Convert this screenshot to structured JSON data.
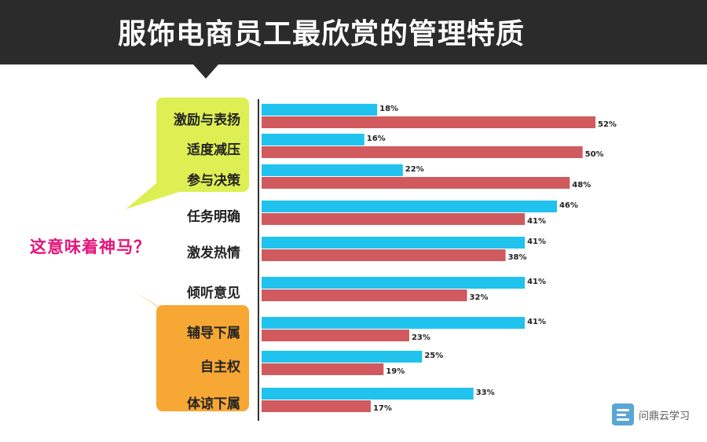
{
  "header": {
    "title": "服饰电商员工最欣赏的管理特质"
  },
  "side_question": "这意味着神马？",
  "logo": {
    "text": "问鼎云学习",
    "icon": "logo-icon"
  },
  "colors": {
    "series_a": "#1fc3ee",
    "series_b": "#d05a5e",
    "callout_green": "#ddef52",
    "callout_orange": "#f7a734",
    "header": "#2b2b2b",
    "question": "#e4147a"
  },
  "chart_data": {
    "type": "bar",
    "orientation": "horizontal",
    "categories": [
      "激励与表扬",
      "适度减压",
      "参与决策",
      "任务明确",
      "激发热情",
      "倾听意见",
      "辅导下属",
      "自主权",
      "体谅下属"
    ],
    "series": [
      {
        "values": [
          18,
          16,
          22,
          46,
          41,
          41,
          41,
          25,
          33
        ],
        "labels": [
          "18%",
          "16%",
          "22%",
          "46%",
          "41%",
          "41%",
          "41%",
          "25%",
          "33%"
        ]
      },
      {
        "values": [
          52,
          50,
          48,
          41,
          38,
          32,
          23,
          19,
          17
        ],
        "labels": [
          "52%",
          "50%",
          "48%",
          "41%",
          "38%",
          "32%",
          "23%",
          "19%",
          "17%"
        ]
      }
    ],
    "xlim": [
      0,
      52
    ],
    "legend": "none",
    "grid": false
  }
}
